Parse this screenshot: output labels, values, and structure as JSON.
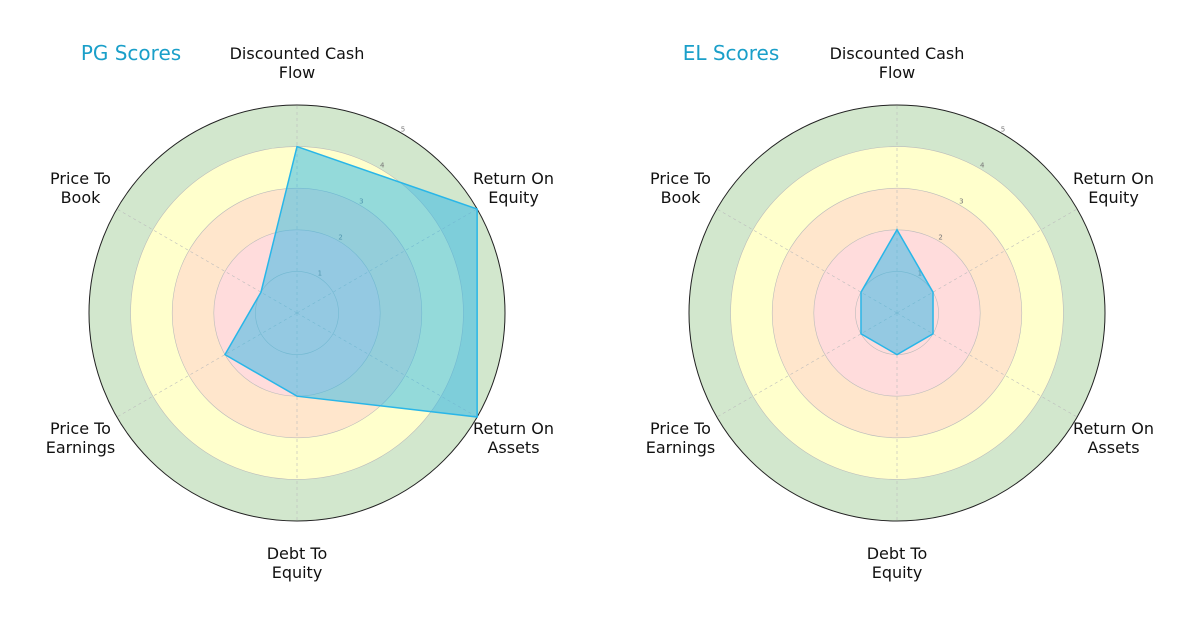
{
  "chart_data": [
    {
      "type": "radar",
      "title": "PG Scores",
      "categories": [
        "Discounted Cash\nFlow",
        "Return On\nEquity",
        "Return On\nAssets",
        "Debt To\nEquity",
        "Price To\nEarnings",
        "Price To\nBook"
      ],
      "series": [
        {
          "color": "#29b6e8",
          "values": [
            4,
            5,
            5,
            2,
            2,
            1
          ]
        }
      ],
      "rlim": [
        0,
        5
      ],
      "rticks": [
        1,
        2,
        3,
        4,
        5
      ],
      "bands": [
        {
          "to": 2,
          "color": "#ffdcdc"
        },
        {
          "to": 3,
          "color": "#ffe6cc"
        },
        {
          "to": 4,
          "color": "#ffffcc"
        },
        {
          "to": 5,
          "color": "#d2e7cd"
        }
      ]
    },
    {
      "type": "radar",
      "title": "EL Scores",
      "categories": [
        "Discounted Cash\nFlow",
        "Return On\nEquity",
        "Return On\nAssets",
        "Debt To\nEquity",
        "Price To\nEarnings",
        "Price To\nBook"
      ],
      "series": [
        {
          "color": "#29b6e8",
          "values": [
            2,
            1,
            1,
            1,
            1,
            1
          ]
        }
      ],
      "rlim": [
        0,
        5
      ],
      "rticks": [
        1,
        2,
        3,
        4,
        5
      ],
      "bands": [
        {
          "to": 2,
          "color": "#ffdcdc"
        },
        {
          "to": 3,
          "color": "#ffe6cc"
        },
        {
          "to": 4,
          "color": "#ffffcc"
        },
        {
          "to": 5,
          "color": "#d2e7cd"
        }
      ]
    }
  ]
}
